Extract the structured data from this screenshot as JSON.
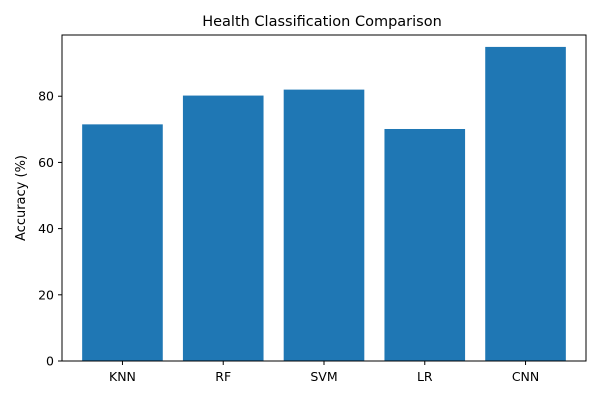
{
  "chart_data": {
    "type": "bar",
    "title": "Health Classification Comparison",
    "xlabel": "",
    "ylabel": "Accuracy (%)",
    "categories": [
      "KNN",
      "RF",
      "SVM",
      "LR",
      "CNN"
    ],
    "values": [
      71.5,
      80.2,
      82.0,
      70.1,
      94.9
    ],
    "ylim": [
      0,
      98.5
    ],
    "yticks": [
      0,
      20,
      40,
      60,
      80
    ],
    "bar_color": "#1f77b4",
    "grid": false,
    "legend": "none"
  }
}
